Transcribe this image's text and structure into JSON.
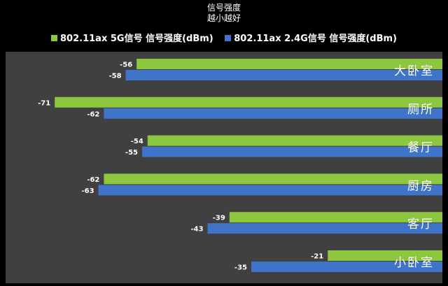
{
  "chart_data": {
    "type": "bar",
    "orientation": "horizontal",
    "title": "信号强度",
    "subtitle": "越小越好",
    "categories": [
      "大卧室",
      "厕所",
      "餐厅",
      "厨房",
      "客厅",
      "小卧室"
    ],
    "series": [
      {
        "name": "802.11ax 5G信号 信号强度(dBm)",
        "color": "#8dc63f",
        "values": [
          -56,
          -71,
          -54,
          -62,
          -39,
          -21
        ]
      },
      {
        "name": "802.11ax 2.4G信号 信号强度(dBm)",
        "color": "#3f74c9",
        "values": [
          -58,
          -62,
          -55,
          -63,
          -43,
          -35
        ]
      }
    ],
    "xlim": [
      -80,
      0
    ],
    "legend": "top",
    "grid": false,
    "data_labels": true
  }
}
